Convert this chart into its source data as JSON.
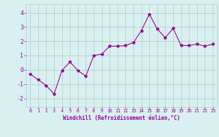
{
  "x": [
    0,
    1,
    2,
    3,
    4,
    5,
    6,
    7,
    8,
    9,
    10,
    11,
    12,
    13,
    14,
    15,
    16,
    17,
    18,
    19,
    20,
    21,
    22,
    23
  ],
  "y": [
    -0.3,
    -0.7,
    -1.1,
    -1.7,
    -0.05,
    0.55,
    -0.05,
    -0.45,
    1.0,
    1.1,
    1.65,
    1.65,
    1.7,
    1.9,
    2.75,
    3.9,
    2.85,
    2.25,
    2.9,
    1.7,
    1.7,
    1.8,
    1.65,
    1.8
  ],
  "line_color": "#990099",
  "marker": "*",
  "marker_size": 3,
  "bg_color": "#d8f0f0",
  "grid_color": "#b0c8c8",
  "xlabel": "Windchill (Refroidissement éolien,°C)",
  "xlabel_color": "#990099",
  "tick_color": "#990099",
  "label_color": "#990099",
  "ylim": [
    -2.6,
    4.6
  ],
  "xlim": [
    -0.5,
    23.5
  ],
  "yticks": [
    -2,
    -1,
    0,
    1,
    2,
    3,
    4
  ],
  "xticks": [
    0,
    1,
    2,
    3,
    4,
    5,
    6,
    7,
    8,
    9,
    10,
    11,
    12,
    13,
    14,
    15,
    16,
    17,
    18,
    19,
    20,
    21,
    22,
    23
  ]
}
